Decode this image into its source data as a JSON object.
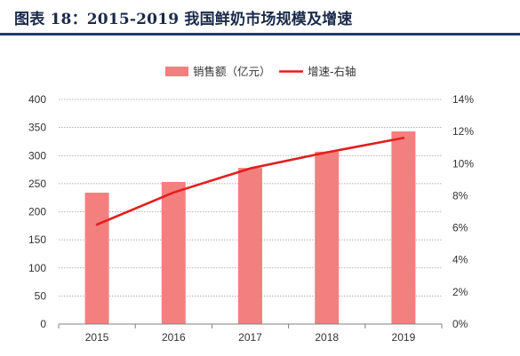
{
  "header": {
    "title": "图表 18：2015-2019 我国鲜奶市场规模及增速"
  },
  "chart_data": {
    "type": "bar",
    "categories": [
      "2015",
      "2016",
      "2017",
      "2018",
      "2019"
    ],
    "series": [
      {
        "name": "销售额（亿元）",
        "type": "bar",
        "axis": "left",
        "values": [
          234,
          253,
          278,
          307,
          343
        ],
        "color": "#f47f7f"
      },
      {
        "name": "增速-右轴",
        "type": "line",
        "axis": "right",
        "values": [
          6.2,
          8.2,
          9.7,
          10.7,
          11.6
        ],
        "color": "#e41e1e"
      }
    ],
    "y_left": {
      "ylim": [
        0,
        400
      ],
      "ticks": [
        "0",
        "50",
        "100",
        "150",
        "200",
        "250",
        "300",
        "350",
        "400"
      ]
    },
    "y_right": {
      "ylim": [
        0,
        14
      ],
      "unit": "%",
      "ticks": [
        "0%",
        "2%",
        "4%",
        "6%",
        "8%",
        "10%",
        "12%",
        "14%"
      ]
    },
    "grid": "horizontal-dashed",
    "legend": "top-center"
  }
}
